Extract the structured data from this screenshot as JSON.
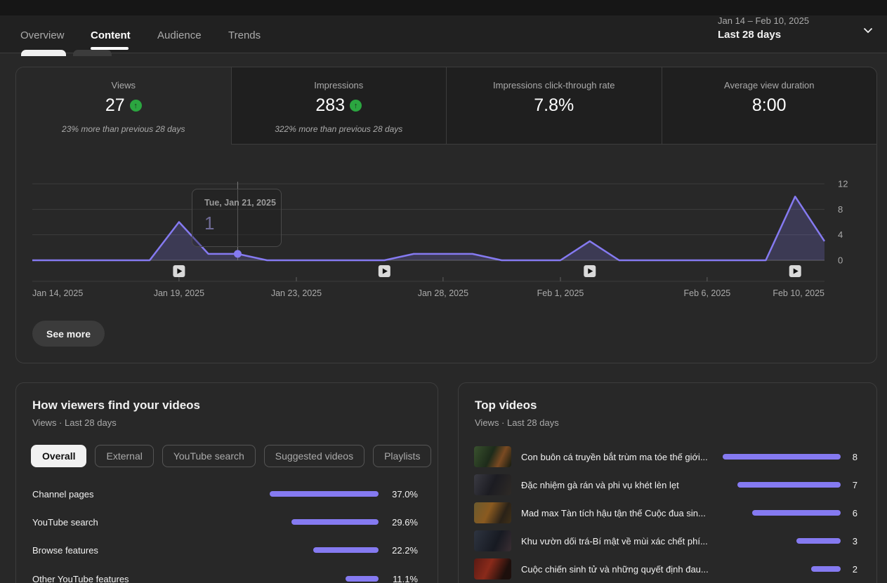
{
  "header": {
    "tabs": [
      {
        "label": "Overview",
        "active": false
      },
      {
        "label": "Content",
        "active": true
      },
      {
        "label": "Audience",
        "active": false
      },
      {
        "label": "Trends",
        "active": false
      }
    ],
    "date_range": "Jan 14 – Feb 10, 2025",
    "date_label": "Last 28 days"
  },
  "metrics": {
    "cards": [
      {
        "label": "Views",
        "value": "27",
        "trend": "up",
        "subtitle": "23% more than previous 28 days",
        "selected": true
      },
      {
        "label": "Impressions",
        "value": "283",
        "trend": "up",
        "subtitle": "322% more than previous 28 days",
        "selected": false
      },
      {
        "label": "Impressions click-through rate",
        "value": "7.8%",
        "selected": false
      },
      {
        "label": "Average view duration",
        "value": "8:00",
        "selected": false
      }
    ]
  },
  "chart_data": {
    "type": "line",
    "title": "Views",
    "dates": [
      "Jan 14",
      "Jan 15",
      "Jan 16",
      "Jan 17",
      "Jan 18",
      "Jan 19",
      "Jan 20",
      "Jan 21",
      "Jan 22",
      "Jan 23",
      "Jan 24",
      "Jan 25",
      "Jan 26",
      "Jan 27",
      "Jan 28",
      "Jan 29",
      "Jan 30",
      "Jan 31",
      "Feb 1",
      "Feb 2",
      "Feb 3",
      "Feb 4",
      "Feb 5",
      "Feb 6",
      "Feb 7",
      "Feb 8",
      "Feb 9",
      "Feb 10"
    ],
    "values": [
      0,
      0,
      0,
      0,
      0,
      6,
      1,
      1,
      0,
      0,
      0,
      0,
      0,
      1,
      1,
      1,
      0,
      0,
      0,
      3,
      0,
      0,
      0,
      0,
      0,
      0,
      10,
      3
    ],
    "ylim": [
      0,
      12
    ],
    "yticks": [
      0,
      4,
      8,
      12
    ],
    "xticks": [
      {
        "label": "Jan 14, 2025",
        "day": 0
      },
      {
        "label": "Jan 19, 2025",
        "day": 5
      },
      {
        "label": "Jan 23, 2025",
        "day": 9
      },
      {
        "label": "Jan 28, 2025",
        "day": 14
      },
      {
        "label": "Feb 1, 2025",
        "day": 18
      },
      {
        "label": "Feb 6, 2025",
        "day": 23
      },
      {
        "label": "Feb 10, 2025",
        "day": 27
      }
    ],
    "video_markers_day_index": [
      5,
      12,
      19,
      26
    ],
    "tooltip": {
      "date": "Tue, Jan 21, 2025",
      "value_display": "1",
      "day_index": 7
    },
    "grid": true,
    "legend": "none",
    "line_color": "#857af1",
    "area_color": "rgba(133,122,241,0.22)"
  },
  "see_more_label": "See more",
  "traffic_panel": {
    "title": "How viewers find your videos",
    "subtitle": "Views · Last 28 days",
    "chips": [
      {
        "label": "Overall",
        "selected": true
      },
      {
        "label": "External",
        "selected": false
      },
      {
        "label": "YouTube search",
        "selected": false
      },
      {
        "label": "Suggested videos",
        "selected": false
      },
      {
        "label": "Playlists",
        "selected": false
      }
    ],
    "rows": [
      {
        "label": "Channel pages",
        "pct": 37.0,
        "pct_display": "37.0%"
      },
      {
        "label": "YouTube search",
        "pct": 29.6,
        "pct_display": "29.6%"
      },
      {
        "label": "Browse features",
        "pct": 22.2,
        "pct_display": "22.2%"
      },
      {
        "label": "Other YouTube features",
        "pct": 11.1,
        "pct_display": "11.1%"
      }
    ]
  },
  "top_videos_panel": {
    "title": "Top videos",
    "subtitle": "Views · Last 28 days",
    "rows": [
      {
        "title": "Con buôn cá truyền bắt trùm ma tóe thế giới...",
        "views": 8,
        "views_display": "8"
      },
      {
        "title": "Đặc nhiệm gà rán và phi vụ khét lèn lẹt",
        "views": 7,
        "views_display": "7"
      },
      {
        "title": "Mad max Tàn tích hậu tận thế Cuộc đua sin...",
        "views": 6,
        "views_display": "6"
      },
      {
        "title": "Khu vườn dối trá-Bí mật về mùi xác chết phí...",
        "views": 3,
        "views_display": "3"
      },
      {
        "title": "Cuộc chiến sinh tử và những quyết định đau...",
        "views": 2,
        "views_display": "2"
      }
    ]
  }
}
